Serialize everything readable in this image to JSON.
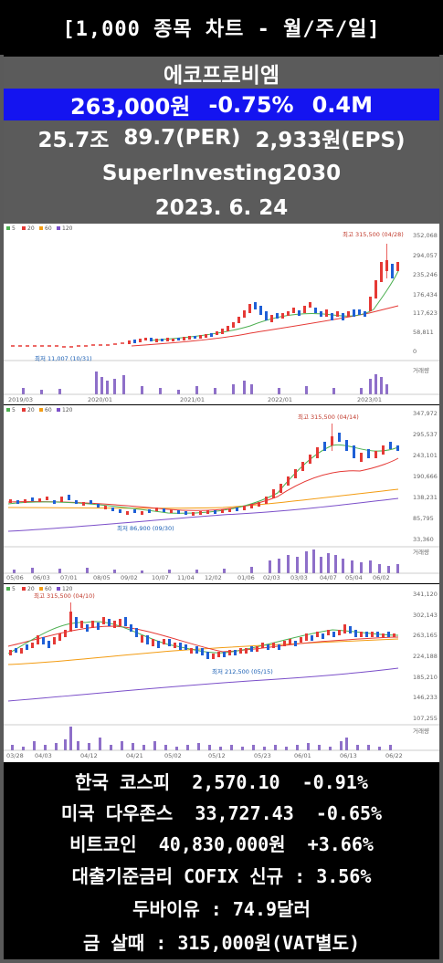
{
  "header": {
    "title": "[1,000 종목 차트 - 월/주/일]"
  },
  "stock": {
    "name": "에코프로비엠",
    "price": "263,000원",
    "change": "-0.75%",
    "volume": "0.4M",
    "market_cap": "25.7조",
    "per": "89.7(PER)",
    "eps": "2,933원(EPS)",
    "author": "SuperInvesting2030",
    "date": "2023. 6. 24"
  },
  "colors": {
    "up": "#e53935",
    "down": "#1e5fd6",
    "ma5": "#4caf50",
    "ma20": "#e53935",
    "ma60": "#f39c12",
    "ma120": "#7b4fc9",
    "header_blue": "#1414f0",
    "panel_gray": "#5b5b5b"
  },
  "charts": {
    "legend": [
      "5",
      "20",
      "60",
      "120"
    ],
    "volume_label": "거래량",
    "monthly": {
      "high_note": "최고 315,500 (04/28)",
      "low_note": "최저 11,007 (10/31)",
      "price_ticks": [
        "352,068",
        "294,057",
        "235,246",
        "176,434",
        "117,623",
        "58,811",
        "0"
      ],
      "date_ticks": [
        "2019/03",
        "2020/01",
        "2021/01",
        "2022/01",
        "2023/01"
      ]
    },
    "weekly": {
      "high_note": "최고 315,500 (04/14)",
      "low_note": "최저 86,900 (09/30)",
      "price_ticks": [
        "347,972",
        "295,537",
        "243,101",
        "190,666",
        "138,231",
        "85,795",
        "33,360"
      ],
      "date_ticks": [
        "05/06",
        "06/03",
        "07/01",
        "08/05",
        "09/02",
        "10/07",
        "11/04",
        "12/02",
        "01/06",
        "02/03",
        "03/03",
        "04/07",
        "05/04",
        "06/02"
      ]
    },
    "daily": {
      "high_note": "최고 315,500 (04/10)",
      "low_note": "최저 212,500 (05/15)",
      "price_ticks": [
        "341,120",
        "302,143",
        "263,165",
        "224,188",
        "185,210",
        "146,233",
        "107,255"
      ],
      "date_ticks": [
        "03/28",
        "04/03",
        "04/12",
        "04/21",
        "05/02",
        "05/12",
        "05/23",
        "06/01",
        "06/13",
        "06/22"
      ]
    }
  },
  "markets": {
    "kospi": "한국 코스피  2,570.10  -0.91%",
    "dow": "미국 다우존스  33,727.43  -0.65%",
    "btc": "비트코인  40,830,000원  +3.66%",
    "cofix": "대출기준금리 COFIX 신규 : 3.56%",
    "dubai": "두바이유 : 74.9달러",
    "gold": "금 살때 : 315,000원(VAT별도)"
  }
}
